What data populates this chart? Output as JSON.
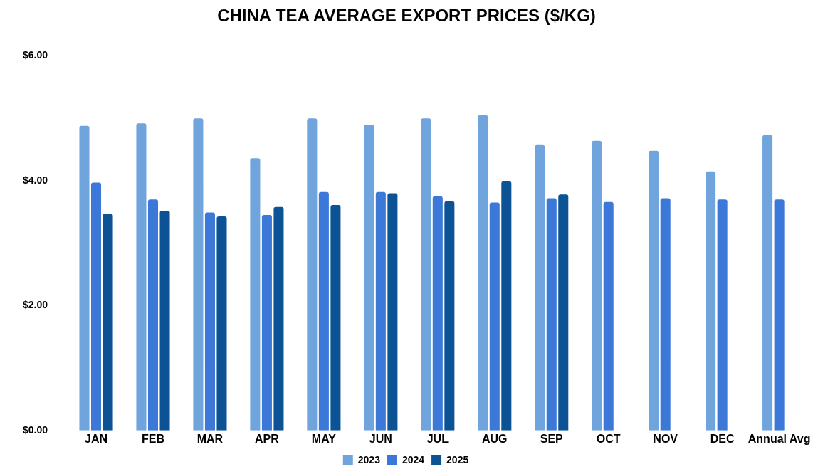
{
  "chart_data": {
    "type": "bar",
    "title": "CHINA TEA AVERAGE EXPORT PRICES ($/KG)",
    "categories": [
      "JAN",
      "FEB",
      "MAR",
      "APR",
      "MAY",
      "JUN",
      "JUL",
      "AUG",
      "SEP",
      "OCT",
      "NOV",
      "DEC",
      "Annual Avg"
    ],
    "series": [
      {
        "name": "2023",
        "color": "#6fa4dc",
        "values": [
          4.88,
          4.92,
          5.0,
          4.36,
          5.0,
          4.9,
          5.0,
          5.05,
          4.57,
          4.64,
          4.48,
          4.15,
          4.73
        ]
      },
      {
        "name": "2024",
        "color": "#3c78d8",
        "values": [
          3.97,
          3.7,
          3.49,
          3.45,
          3.82,
          3.82,
          3.75,
          3.65,
          3.72,
          3.66,
          3.72,
          3.7,
          3.7
        ]
      },
      {
        "name": "2025",
        "color": "#0b5394",
        "values": [
          3.47,
          3.52,
          3.43,
          3.58,
          3.61,
          3.8,
          3.67,
          3.99,
          3.78,
          null,
          null,
          null,
          null
        ]
      }
    ],
    "ylim": [
      0,
      6
    ],
    "yticks": [
      {
        "value": 0,
        "label": "$0.00"
      },
      {
        "value": 2,
        "label": "$2.00"
      },
      {
        "value": 4,
        "label": "$4.00"
      },
      {
        "value": 6,
        "label": "$6.00"
      }
    ],
    "legend": "bottom"
  }
}
